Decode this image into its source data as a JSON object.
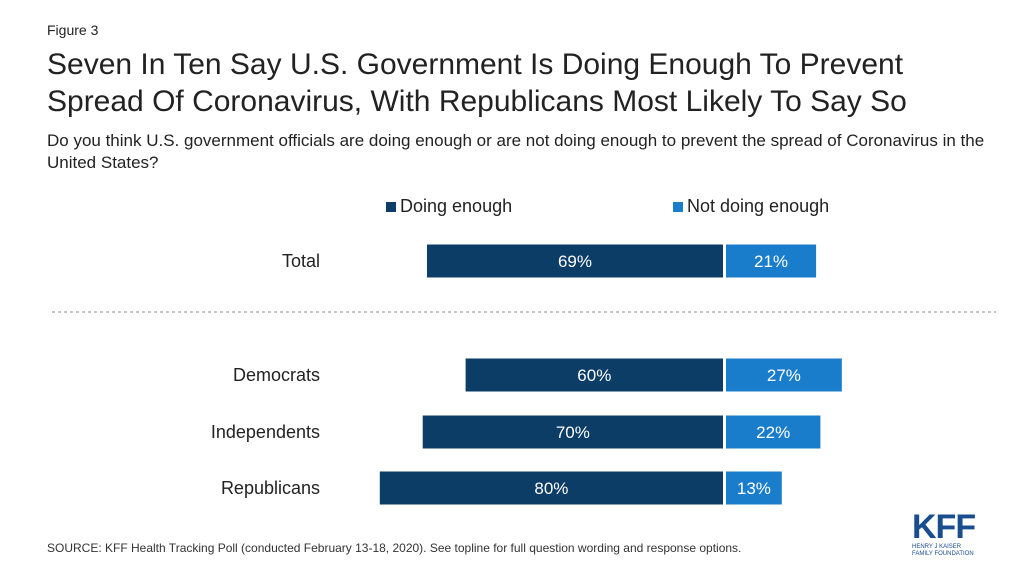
{
  "figure_label": "Figure 3",
  "title": "Seven In Ten Say U.S. Government Is Doing Enough To Prevent Spread Of Coronavirus, With Republicans Most Likely To Say So",
  "subtitle": "Do you think U.S. government officials are doing enough or are not doing enough to prevent the spread of Coronavirus in the United States?",
  "source": "SOURCE: KFF Health Tracking Poll (conducted February 13-18, 2020). See topline for full question wording and response options.",
  "logo": {
    "word": "KFF",
    "line1": "HENRY J KAISER",
    "line2": "FAMILY FOUNDATION"
  },
  "colors": {
    "doing_enough": "#0b3d66",
    "not_doing_enough": "#1a7dcc",
    "separator": "#888888"
  },
  "chart_data": {
    "type": "bar",
    "orientation": "horizontal-diverging",
    "categories": [
      "Total",
      "Democrats",
      "Independents",
      "Republicans"
    ],
    "series": [
      {
        "name": "Doing enough",
        "values": [
          69,
          60,
          70,
          80
        ],
        "labels": [
          "69%",
          "60%",
          "70%",
          "80%"
        ]
      },
      {
        "name": "Not doing enough",
        "values": [
          21,
          27,
          22,
          13
        ],
        "labels": [
          "21%",
          "27%",
          "22%",
          "13%"
        ]
      }
    ],
    "legend": "top",
    "grid": false
  }
}
